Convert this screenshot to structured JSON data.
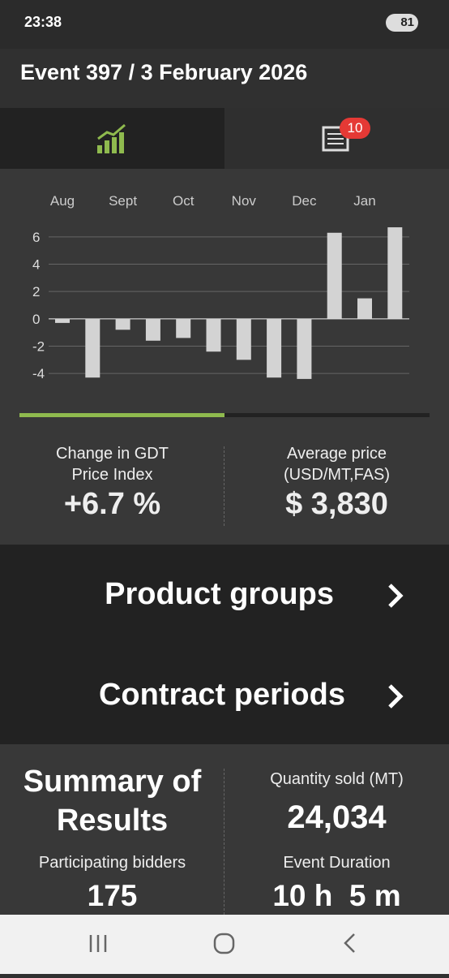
{
  "status_bar": {
    "time": "23:38",
    "battery": "81"
  },
  "header": {
    "title": "Event 397 / 3 February 2026"
  },
  "tabs": {
    "badge": "10"
  },
  "chart_data": {
    "type": "bar",
    "categories": [
      "Aug",
      null,
      "Sept",
      null,
      "Oct",
      null,
      "Nov",
      null,
      "Dec",
      null,
      "Jan",
      null
    ],
    "values": [
      -0.3,
      -4.3,
      -0.8,
      -1.6,
      -1.4,
      -2.4,
      -3.0,
      -4.3,
      -4.4,
      6.3,
      1.5,
      6.7
    ],
    "color": "#d3d3d3",
    "ylim": [
      -5,
      7
    ],
    "yticks": [
      -4,
      -2,
      0,
      2,
      4,
      6
    ],
    "grid": true
  },
  "stats": {
    "change_label": [
      "Change in GDT",
      "Price Index"
    ],
    "change_value": "+6.7 %",
    "price_label": [
      "Average price",
      "(USD/MT,FAS)"
    ],
    "price_value": "$ 3,830"
  },
  "links": [
    "Product groups",
    "Contract periods"
  ],
  "summary": {
    "title": [
      "Summary of",
      "Results"
    ],
    "quantity_label": "Quantity sold (MT)",
    "quantity_value": "24,034",
    "bidders_label": "Participating bidders",
    "bidders_value": "175",
    "duration_label": "Event Duration",
    "duration_value": "10 h  5 m"
  }
}
